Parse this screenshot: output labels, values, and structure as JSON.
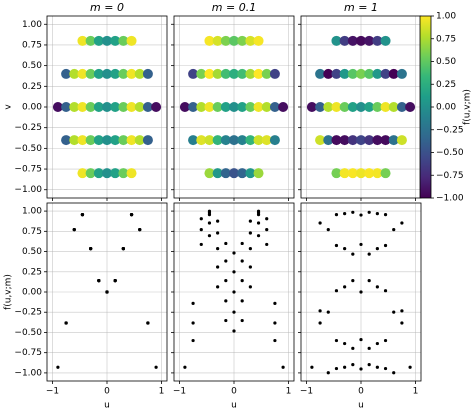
{
  "chart_data": [
    {
      "type": "scatter",
      "title": "m = 0",
      "ylabel": "v",
      "colormap": [
        "#440154",
        "#482878",
        "#3e4989",
        "#31688e",
        "#26828e",
        "#1f9e89",
        "#35b779",
        "#6ece58",
        "#b5de2b",
        "#fde725"
      ],
      "clim": [
        -1,
        1
      ],
      "x": [
        -0.9,
        -0.75,
        -0.75,
        -0.75,
        -0.6,
        -0.6,
        -0.6,
        -0.45,
        -0.45,
        -0.45,
        -0.45,
        -0.45,
        -0.3,
        -0.3,
        -0.3,
        -0.3,
        -0.3,
        -0.15,
        -0.15,
        -0.15,
        -0.15,
        -0.15,
        0,
        0,
        0,
        0,
        0,
        0.15,
        0.15,
        0.15,
        0.15,
        0.15,
        0.3,
        0.3,
        0.3,
        0.3,
        0.3,
        0.45,
        0.45,
        0.45,
        0.45,
        0.45,
        0.6,
        0.6,
        0.6,
        0.75,
        0.75,
        0.75,
        0.9
      ],
      "y": [
        0,
        -0.4,
        0,
        0.4,
        -0.4,
        0,
        0.4,
        -0.8,
        -0.4,
        0,
        0.4,
        0.8,
        -0.8,
        -0.4,
        0,
        0.4,
        0.8,
        -0.8,
        -0.4,
        0,
        0.4,
        0.8,
        -0.8,
        -0.4,
        0,
        0.4,
        0.8,
        -0.8,
        -0.4,
        0,
        0.4,
        0.8,
        -0.8,
        -0.4,
        0,
        0.4,
        0.8,
        -0.8,
        -0.4,
        0,
        0.4,
        0.8,
        -0.4,
        0,
        0.4,
        -0.4,
        0,
        0.4,
        0
      ],
      "values": [
        -0.93,
        -0.383,
        -0.383,
        -0.383,
        0.771,
        0.771,
        0.771,
        0.956,
        0.956,
        0.956,
        0.956,
        0.956,
        0.536,
        0.536,
        0.536,
        0.536,
        0.536,
        0.141,
        0.141,
        0.141,
        0.141,
        0.141,
        0,
        0,
        0,
        0,
        0,
        0.141,
        0.141,
        0.141,
        0.141,
        0.141,
        0.536,
        0.536,
        0.536,
        0.536,
        0.536,
        0.956,
        0.956,
        0.956,
        0.956,
        0.956,
        0.771,
        0.771,
        0.771,
        -0.383,
        -0.383,
        -0.383,
        -0.93
      ],
      "xlim": [
        -1.1,
        1.1
      ],
      "ylim": [
        -1.1,
        1.1
      ],
      "xticks": [
        {
          "value": -1,
          "label": "−1"
        },
        0,
        1
      ],
      "yticks": [
        {
          "value": -1,
          "label": "−1.00"
        },
        {
          "value": -0.75,
          "label": "−0.75"
        },
        {
          "value": -0.5,
          "label": "−0.50"
        },
        {
          "value": -0.25,
          "label": "−0.25"
        },
        {
          "value": 0,
          "label": "0.00"
        },
        {
          "value": 0.25,
          "label": "0.25"
        },
        {
          "value": 0.5,
          "label": "0.50"
        },
        {
          "value": 0.75,
          "label": "0.75"
        },
        {
          "value": 1,
          "label": "1.00"
        }
      ],
      "grid": true
    },
    {
      "type": "scatter",
      "title": "m = 0.1",
      "colormap": [
        "#440154",
        "#482878",
        "#3e4989",
        "#31688e",
        "#26828e",
        "#1f9e89",
        "#35b779",
        "#6ece58",
        "#b5de2b",
        "#fde725"
      ],
      "clim": [
        -1,
        1
      ],
      "x": [
        -0.9,
        -0.75,
        -0.75,
        -0.75,
        -0.6,
        -0.6,
        -0.6,
        -0.45,
        -0.45,
        -0.45,
        -0.45,
        -0.45,
        -0.3,
        -0.3,
        -0.3,
        -0.3,
        -0.3,
        -0.15,
        -0.15,
        -0.15,
        -0.15,
        -0.15,
        0,
        0,
        0,
        0,
        0,
        0.15,
        0.15,
        0.15,
        0.15,
        0.15,
        0.3,
        0.3,
        0.3,
        0.3,
        0.3,
        0.45,
        0.45,
        0.45,
        0.45,
        0.45,
        0.6,
        0.6,
        0.6,
        0.75,
        0.75,
        0.75,
        0.9
      ],
      "y": [
        0,
        -0.4,
        0,
        0.4,
        -0.4,
        0,
        0.4,
        -0.8,
        -0.4,
        0,
        0.4,
        0.8,
        -0.8,
        -0.4,
        0,
        0.4,
        0.8,
        -0.8,
        -0.4,
        0,
        0.4,
        0.8,
        -0.8,
        -0.4,
        0,
        0.4,
        0.8,
        -0.8,
        -0.4,
        0,
        0.4,
        0.8,
        -0.8,
        -0.4,
        0,
        0.4,
        0.8,
        -0.8,
        -0.4,
        0,
        0.4,
        0.8,
        -0.4,
        0,
        0.4,
        -0.4,
        0,
        0.4,
        0
      ],
      "values": [
        -0.93,
        -0.141,
        -0.383,
        -0.6,
        0.905,
        0.771,
        0.588,
        0.696,
        0.853,
        0.956,
        0.999,
        0.979,
        0.063,
        0.309,
        0.536,
        0.729,
        0.876,
        -0.353,
        -0.11,
        0.141,
        0.383,
        0.6,
        -0.482,
        -0.249,
        0,
        0.249,
        0.482,
        -0.353,
        -0.11,
        0.141,
        0.383,
        0.6,
        0.063,
        0.309,
        0.536,
        0.729,
        0.876,
        0.696,
        0.853,
        0.956,
        0.999,
        0.979,
        0.905,
        0.771,
        0.588,
        -0.141,
        -0.383,
        -0.6,
        -0.93
      ],
      "xlim": [
        -1.1,
        1.1
      ],
      "ylim": [
        -1.1,
        1.1
      ],
      "xticks": [
        -1,
        0,
        1
      ],
      "yticks": [
        -1,
        -0.75,
        -0.5,
        -0.25,
        0,
        0.25,
        0.5,
        0.75,
        1
      ],
      "grid": true
    },
    {
      "type": "scatter",
      "title": "m = 1",
      "colormap": [
        "#440154",
        "#482878",
        "#3e4989",
        "#31688e",
        "#26828e",
        "#1f9e89",
        "#35b779",
        "#6ece58",
        "#b5de2b",
        "#fde725"
      ],
      "clim": [
        -1,
        1
      ],
      "x": [
        -0.9,
        -0.75,
        -0.75,
        -0.75,
        -0.6,
        -0.6,
        -0.6,
        -0.45,
        -0.45,
        -0.45,
        -0.45,
        -0.45,
        -0.3,
        -0.3,
        -0.3,
        -0.3,
        -0.3,
        -0.15,
        -0.15,
        -0.15,
        -0.15,
        -0.15,
        0,
        0,
        0,
        0,
        0,
        0.15,
        0.15,
        0.15,
        0.15,
        0.15,
        0.3,
        0.3,
        0.3,
        0.3,
        0.3,
        0.45,
        0.45,
        0.45,
        0.45,
        0.45,
        0.6,
        0.6,
        0.6,
        0.75,
        0.75,
        0.75,
        0.9
      ],
      "y": [
        0,
        -0.4,
        0,
        0.4,
        -0.4,
        0,
        0.4,
        -0.8,
        -0.4,
        0,
        0.4,
        0.8,
        -0.8,
        -0.4,
        0,
        0.4,
        0.8,
        -0.8,
        -0.4,
        0,
        0.4,
        0.8,
        -0.8,
        -0.4,
        0,
        0.4,
        0.8,
        -0.8,
        -0.4,
        0,
        0.4,
        0.8,
        -0.8,
        -0.4,
        0,
        0.4,
        0.8,
        -0.8,
        -0.4,
        0,
        0.4,
        0.8,
        -0.4,
        0,
        0.4,
        -0.4,
        0,
        0.4,
        0
      ],
      "values": [
        -0.93,
        0.853,
        -0.383,
        -0.233,
        -0.249,
        0.771,
        -0.998,
        0.575,
        -0.946,
        0.956,
        -0.6,
        0.016,
        0.969,
        -0.93,
        0.536,
        0.063,
        -0.637,
        0.985,
        -0.696,
        0.141,
        0.468,
        -0.898,
        0.951,
        -0.588,
        0,
        0.588,
        -0.951,
        0.985,
        -0.696,
        0.141,
        0.468,
        -0.898,
        0.969,
        -0.93,
        0.536,
        0.063,
        -0.637,
        0.575,
        -0.946,
        0.956,
        -0.6,
        0.016,
        -0.249,
        0.771,
        -0.998,
        0.853,
        -0.383,
        -0.233,
        -0.93
      ],
      "xlim": [
        -1.1,
        1.1
      ],
      "ylim": [
        -1.1,
        1.1
      ],
      "xticks": [
        -1,
        0,
        1
      ],
      "yticks": [
        -1,
        -0.75,
        -0.5,
        -0.25,
        0,
        0.25,
        0.5,
        0.75,
        1
      ],
      "grid": true,
      "colorbar": {
        "label": "f(u,v;m)",
        "lim": [
          -1,
          1
        ],
        "ticks": [
          {
            "value": -1,
            "label": "−1.00"
          },
          {
            "value": -0.75,
            "label": "−0.75"
          },
          {
            "value": -0.5,
            "label": "−0.50"
          },
          {
            "value": -0.25,
            "label": "−0.25"
          },
          {
            "value": 0,
            "label": "0.00"
          },
          {
            "value": 0.25,
            "label": "0.25"
          },
          {
            "value": 0.5,
            "label": "0.50"
          },
          {
            "value": 0.75,
            "label": "0.75"
          },
          {
            "value": 1,
            "label": "1.00"
          }
        ]
      }
    },
    {
      "type": "scatter",
      "xlabel": "u",
      "ylabel": "f(u,v;m)",
      "color": "#000000",
      "x": [
        -0.9,
        -0.75,
        -0.75,
        -0.75,
        -0.6,
        -0.6,
        -0.6,
        -0.45,
        -0.45,
        -0.45,
        -0.45,
        -0.45,
        -0.3,
        -0.3,
        -0.3,
        -0.3,
        -0.3,
        -0.15,
        -0.15,
        -0.15,
        -0.15,
        -0.15,
        0,
        0,
        0,
        0,
        0,
        0.15,
        0.15,
        0.15,
        0.15,
        0.15,
        0.3,
        0.3,
        0.3,
        0.3,
        0.3,
        0.45,
        0.45,
        0.45,
        0.45,
        0.45,
        0.6,
        0.6,
        0.6,
        0.75,
        0.75,
        0.75,
        0.9
      ],
      "y": [
        -0.93,
        -0.383,
        -0.383,
        -0.383,
        0.771,
        0.771,
        0.771,
        0.956,
        0.956,
        0.956,
        0.956,
        0.956,
        0.536,
        0.536,
        0.536,
        0.536,
        0.536,
        0.141,
        0.141,
        0.141,
        0.141,
        0.141,
        0,
        0,
        0,
        0,
        0,
        0.141,
        0.141,
        0.141,
        0.141,
        0.141,
        0.536,
        0.536,
        0.536,
        0.536,
        0.536,
        0.956,
        0.956,
        0.956,
        0.956,
        0.956,
        0.771,
        0.771,
        0.771,
        -0.383,
        -0.383,
        -0.383,
        -0.93
      ],
      "xlim": [
        -1.1,
        1.1
      ],
      "ylim": [
        -1.1,
        1.1
      ],
      "xticks": [
        {
          "value": -1,
          "label": "−1"
        },
        0,
        1
      ],
      "yticks": [
        {
          "value": -1,
          "label": "−1.00"
        },
        {
          "value": -0.75,
          "label": "−0.75"
        },
        {
          "value": -0.5,
          "label": "−0.50"
        },
        {
          "value": -0.25,
          "label": "−0.25"
        },
        {
          "value": 0,
          "label": "0.00"
        },
        {
          "value": 0.25,
          "label": "0.25"
        },
        {
          "value": 0.5,
          "label": "0.50"
        },
        {
          "value": 0.75,
          "label": "0.75"
        },
        {
          "value": 1,
          "label": "1.00"
        }
      ],
      "grid": true
    },
    {
      "type": "scatter",
      "xlabel": "u",
      "color": "#000000",
      "x": [
        -0.9,
        -0.75,
        -0.75,
        -0.75,
        -0.6,
        -0.6,
        -0.6,
        -0.45,
        -0.45,
        -0.45,
        -0.45,
        -0.45,
        -0.3,
        -0.3,
        -0.3,
        -0.3,
        -0.3,
        -0.15,
        -0.15,
        -0.15,
        -0.15,
        -0.15,
        0,
        0,
        0,
        0,
        0,
        0.15,
        0.15,
        0.15,
        0.15,
        0.15,
        0.3,
        0.3,
        0.3,
        0.3,
        0.3,
        0.45,
        0.45,
        0.45,
        0.45,
        0.45,
        0.6,
        0.6,
        0.6,
        0.75,
        0.75,
        0.75,
        0.9
      ],
      "y": [
        -0.93,
        -0.141,
        -0.383,
        -0.6,
        0.905,
        0.771,
        0.588,
        0.696,
        0.853,
        0.956,
        0.999,
        0.979,
        0.063,
        0.309,
        0.536,
        0.729,
        0.876,
        -0.353,
        -0.11,
        0.141,
        0.383,
        0.6,
        -0.482,
        -0.249,
        0,
        0.249,
        0.482,
        -0.353,
        -0.11,
        0.141,
        0.383,
        0.6,
        0.063,
        0.309,
        0.536,
        0.729,
        0.876,
        0.696,
        0.853,
        0.956,
        0.999,
        0.979,
        0.905,
        0.771,
        0.588,
        -0.141,
        -0.383,
        -0.6,
        -0.93
      ],
      "xlim": [
        -1.1,
        1.1
      ],
      "ylim": [
        -1.1,
        1.1
      ],
      "xticks": [
        {
          "value": -1,
          "label": "−1"
        },
        0,
        1
      ],
      "yticks": [
        -1,
        -0.75,
        -0.5,
        -0.25,
        0,
        0.25,
        0.5,
        0.75,
        1
      ],
      "grid": true
    },
    {
      "type": "scatter",
      "xlabel": "u",
      "color": "#000000",
      "x": [
        -0.9,
        -0.75,
        -0.75,
        -0.75,
        -0.6,
        -0.6,
        -0.6,
        -0.45,
        -0.45,
        -0.45,
        -0.45,
        -0.45,
        -0.3,
        -0.3,
        -0.3,
        -0.3,
        -0.3,
        -0.15,
        -0.15,
        -0.15,
        -0.15,
        -0.15,
        0,
        0,
        0,
        0,
        0,
        0.15,
        0.15,
        0.15,
        0.15,
        0.15,
        0.3,
        0.3,
        0.3,
        0.3,
        0.3,
        0.45,
        0.45,
        0.45,
        0.45,
        0.45,
        0.6,
        0.6,
        0.6,
        0.75,
        0.75,
        0.75,
        0.9
      ],
      "y": [
        -0.93,
        0.853,
        -0.383,
        -0.233,
        -0.249,
        0.771,
        -0.998,
        0.575,
        -0.946,
        0.956,
        -0.6,
        0.016,
        0.969,
        -0.93,
        0.536,
        0.063,
        -0.637,
        0.985,
        -0.696,
        0.141,
        0.468,
        -0.898,
        0.951,
        -0.588,
        0,
        0.588,
        -0.951,
        0.985,
        -0.696,
        0.141,
        0.468,
        -0.898,
        0.969,
        -0.93,
        0.536,
        0.063,
        -0.637,
        0.575,
        -0.946,
        0.956,
        -0.6,
        0.016,
        -0.249,
        0.771,
        -0.998,
        0.853,
        -0.383,
        -0.233,
        -0.93
      ],
      "xlim": [
        -1.1,
        1.1
      ],
      "ylim": [
        -1.1,
        1.1
      ],
      "xticks": [
        {
          "value": -1,
          "label": "−1"
        },
        0,
        1
      ],
      "yticks": [
        -1,
        -0.75,
        -0.5,
        -0.25,
        0,
        0.25,
        0.5,
        0.75,
        1
      ],
      "grid": true
    }
  ]
}
